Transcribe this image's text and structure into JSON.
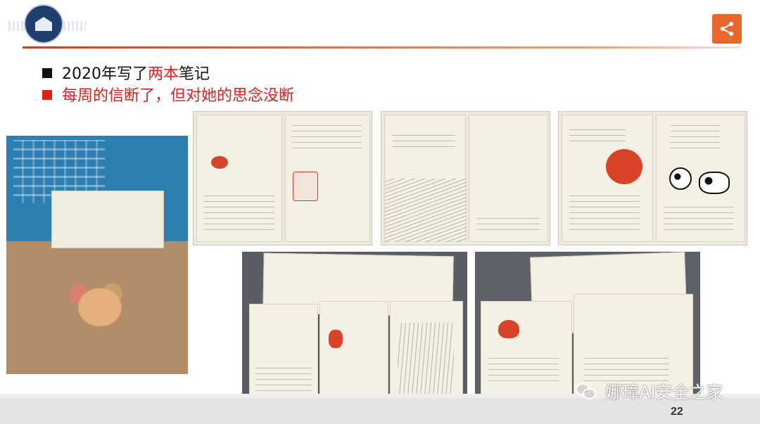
{
  "header": {
    "logo_icon": "university-seal-icon",
    "share_icon": "share-icon",
    "accent_color": "#c7401e",
    "share_color": "#e8672d"
  },
  "bullets": [
    {
      "pre": "2020年写了",
      "emph": "两本",
      "post": "笔记",
      "color": "#111111"
    },
    {
      "text": "每周的信断了，但对她的思念没断",
      "color": "#e0201a"
    }
  ],
  "photos": {
    "left": "notebook-cover-photo",
    "top": [
      "notebook-page-photo-1",
      "notebook-page-photo-2",
      "notebook-page-photo-3"
    ],
    "bottom": [
      "notebook-stack-photo-1",
      "notebook-stack-photo-2"
    ]
  },
  "footer": {
    "watermark_text": "娜璋AI安全之家",
    "watermark_icon": "wechat-icon",
    "page_number": "22"
  }
}
